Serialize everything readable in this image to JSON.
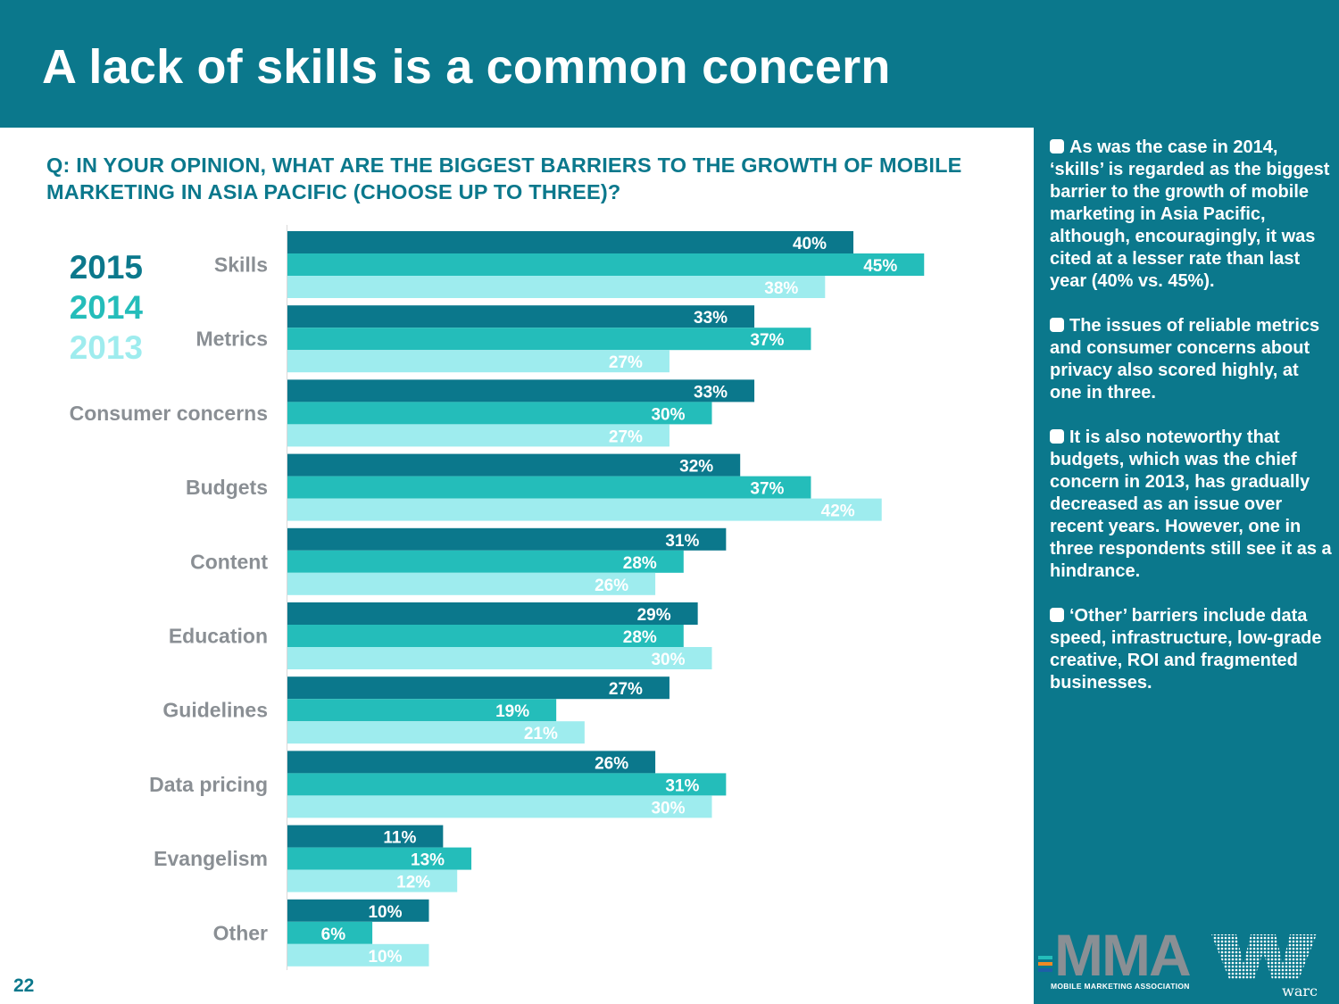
{
  "header": {
    "title": "A lack of skills is a common concern"
  },
  "question": "Q: IN YOUR OPINION, WHAT ARE THE BIGGEST BARRIERS TO THE GROWTH OF MOBILE MARKETING IN ASIA PACIFIC (CHOOSE UP TO THREE)?",
  "chart_data": {
    "type": "bar",
    "orientation": "horizontal",
    "categories": [
      "Skills",
      "Metrics",
      "Consumer concerns",
      "Budgets",
      "Content",
      "Education",
      "Guidelines",
      "Data pricing",
      "Evangelism",
      "Other"
    ],
    "series": [
      {
        "name": "2015",
        "color": "#0b788c",
        "label_color": "#ffffff",
        "values": [
          40,
          33,
          33,
          32,
          31,
          29,
          27,
          26,
          11,
          10
        ]
      },
      {
        "name": "2014",
        "color": "#24bdba",
        "label_color": "#ffffff",
        "values": [
          45,
          37,
          30,
          37,
          28,
          28,
          19,
          31,
          13,
          6
        ]
      },
      {
        "name": "2013",
        "color": "#9eecee",
        "label_color": "#ffffff",
        "values": [
          38,
          27,
          27,
          42,
          26,
          30,
          21,
          30,
          12,
          10
        ]
      }
    ],
    "value_suffix": "%",
    "xlim": [
      0,
      50
    ],
    "grid": false,
    "legend_position": "left"
  },
  "legend": [
    {
      "label": "2015",
      "color": "#0b788c"
    },
    {
      "label": "2014",
      "color": "#24bdba"
    },
    {
      "label": "2013",
      "color": "#9eecee"
    }
  ],
  "sidebar": {
    "notes": [
      "As was the case in 2014, ‘skills’ is regarded as the biggest barrier to the growth of mobile marketing in Asia Pacific, although, encouragingly, it was cited at a lesser rate than last year (40% vs. 45%).",
      "The issues of reliable metrics and consumer concerns about privacy also scored highly, at one in three.",
      "It is also noteworthy that budgets, which was the chief concern in 2013, has gradually decreased as an issue over recent years. However, one in three respondents still see it as a hindrance.",
      "‘Other’ barriers include data speed, infrastructure, low-grade creative, ROI and fragmented businesses."
    ]
  },
  "logos": {
    "mma_text": "MMA",
    "mma_subtitle": "MOBILE MARKETING ASSOCIATION",
    "warc_text": "warc"
  },
  "page_number": "22"
}
